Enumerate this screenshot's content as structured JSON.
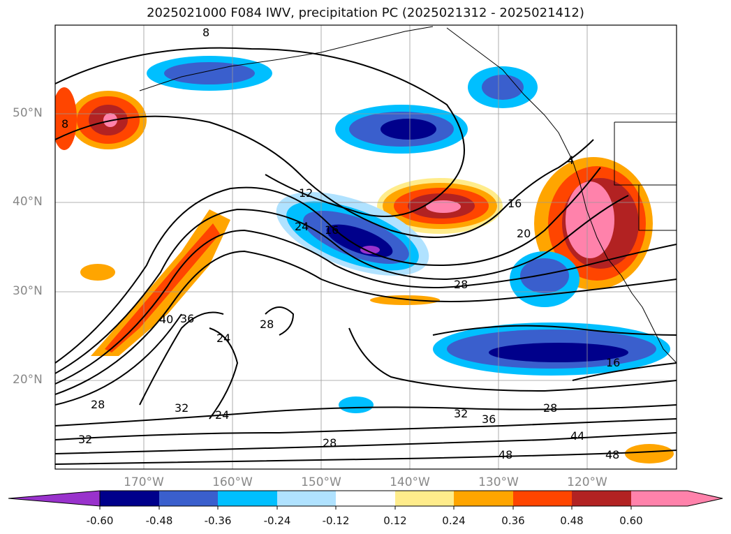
{
  "title": "2025021000 F084 IWV, precipitation PC (2025021312 - 2025021412)",
  "map": {
    "lat_labels": [
      "50°N",
      "40°N",
      "30°N",
      "20°N"
    ],
    "lon_labels": [
      "170°W",
      "160°W",
      "150°W",
      "140°W",
      "130°W",
      "120°W"
    ],
    "contour_labels": [
      "8",
      "8",
      "12",
      "16",
      "24",
      "16",
      "20",
      "4",
      "28",
      "28",
      "40",
      "36",
      "24",
      "28",
      "32",
      "24",
      "32",
      "36",
      "28",
      "44",
      "48",
      "48",
      "16",
      "32",
      "28"
    ]
  },
  "colorbar": {
    "ticks": [
      "-0.60",
      "-0.48",
      "-0.36",
      "-0.24",
      "-0.12",
      "0.12",
      "0.24",
      "0.36",
      "0.48",
      "0.60"
    ],
    "colors": [
      "#9932cc",
      "#00008b",
      "#3a5fcd",
      "#00bfff",
      "#b0e2ff",
      "#ffffff",
      "#ffec8b",
      "#ffa500",
      "#ff4500",
      "#b22222",
      "#ff82ab",
      "#ff82ab"
    ]
  }
}
